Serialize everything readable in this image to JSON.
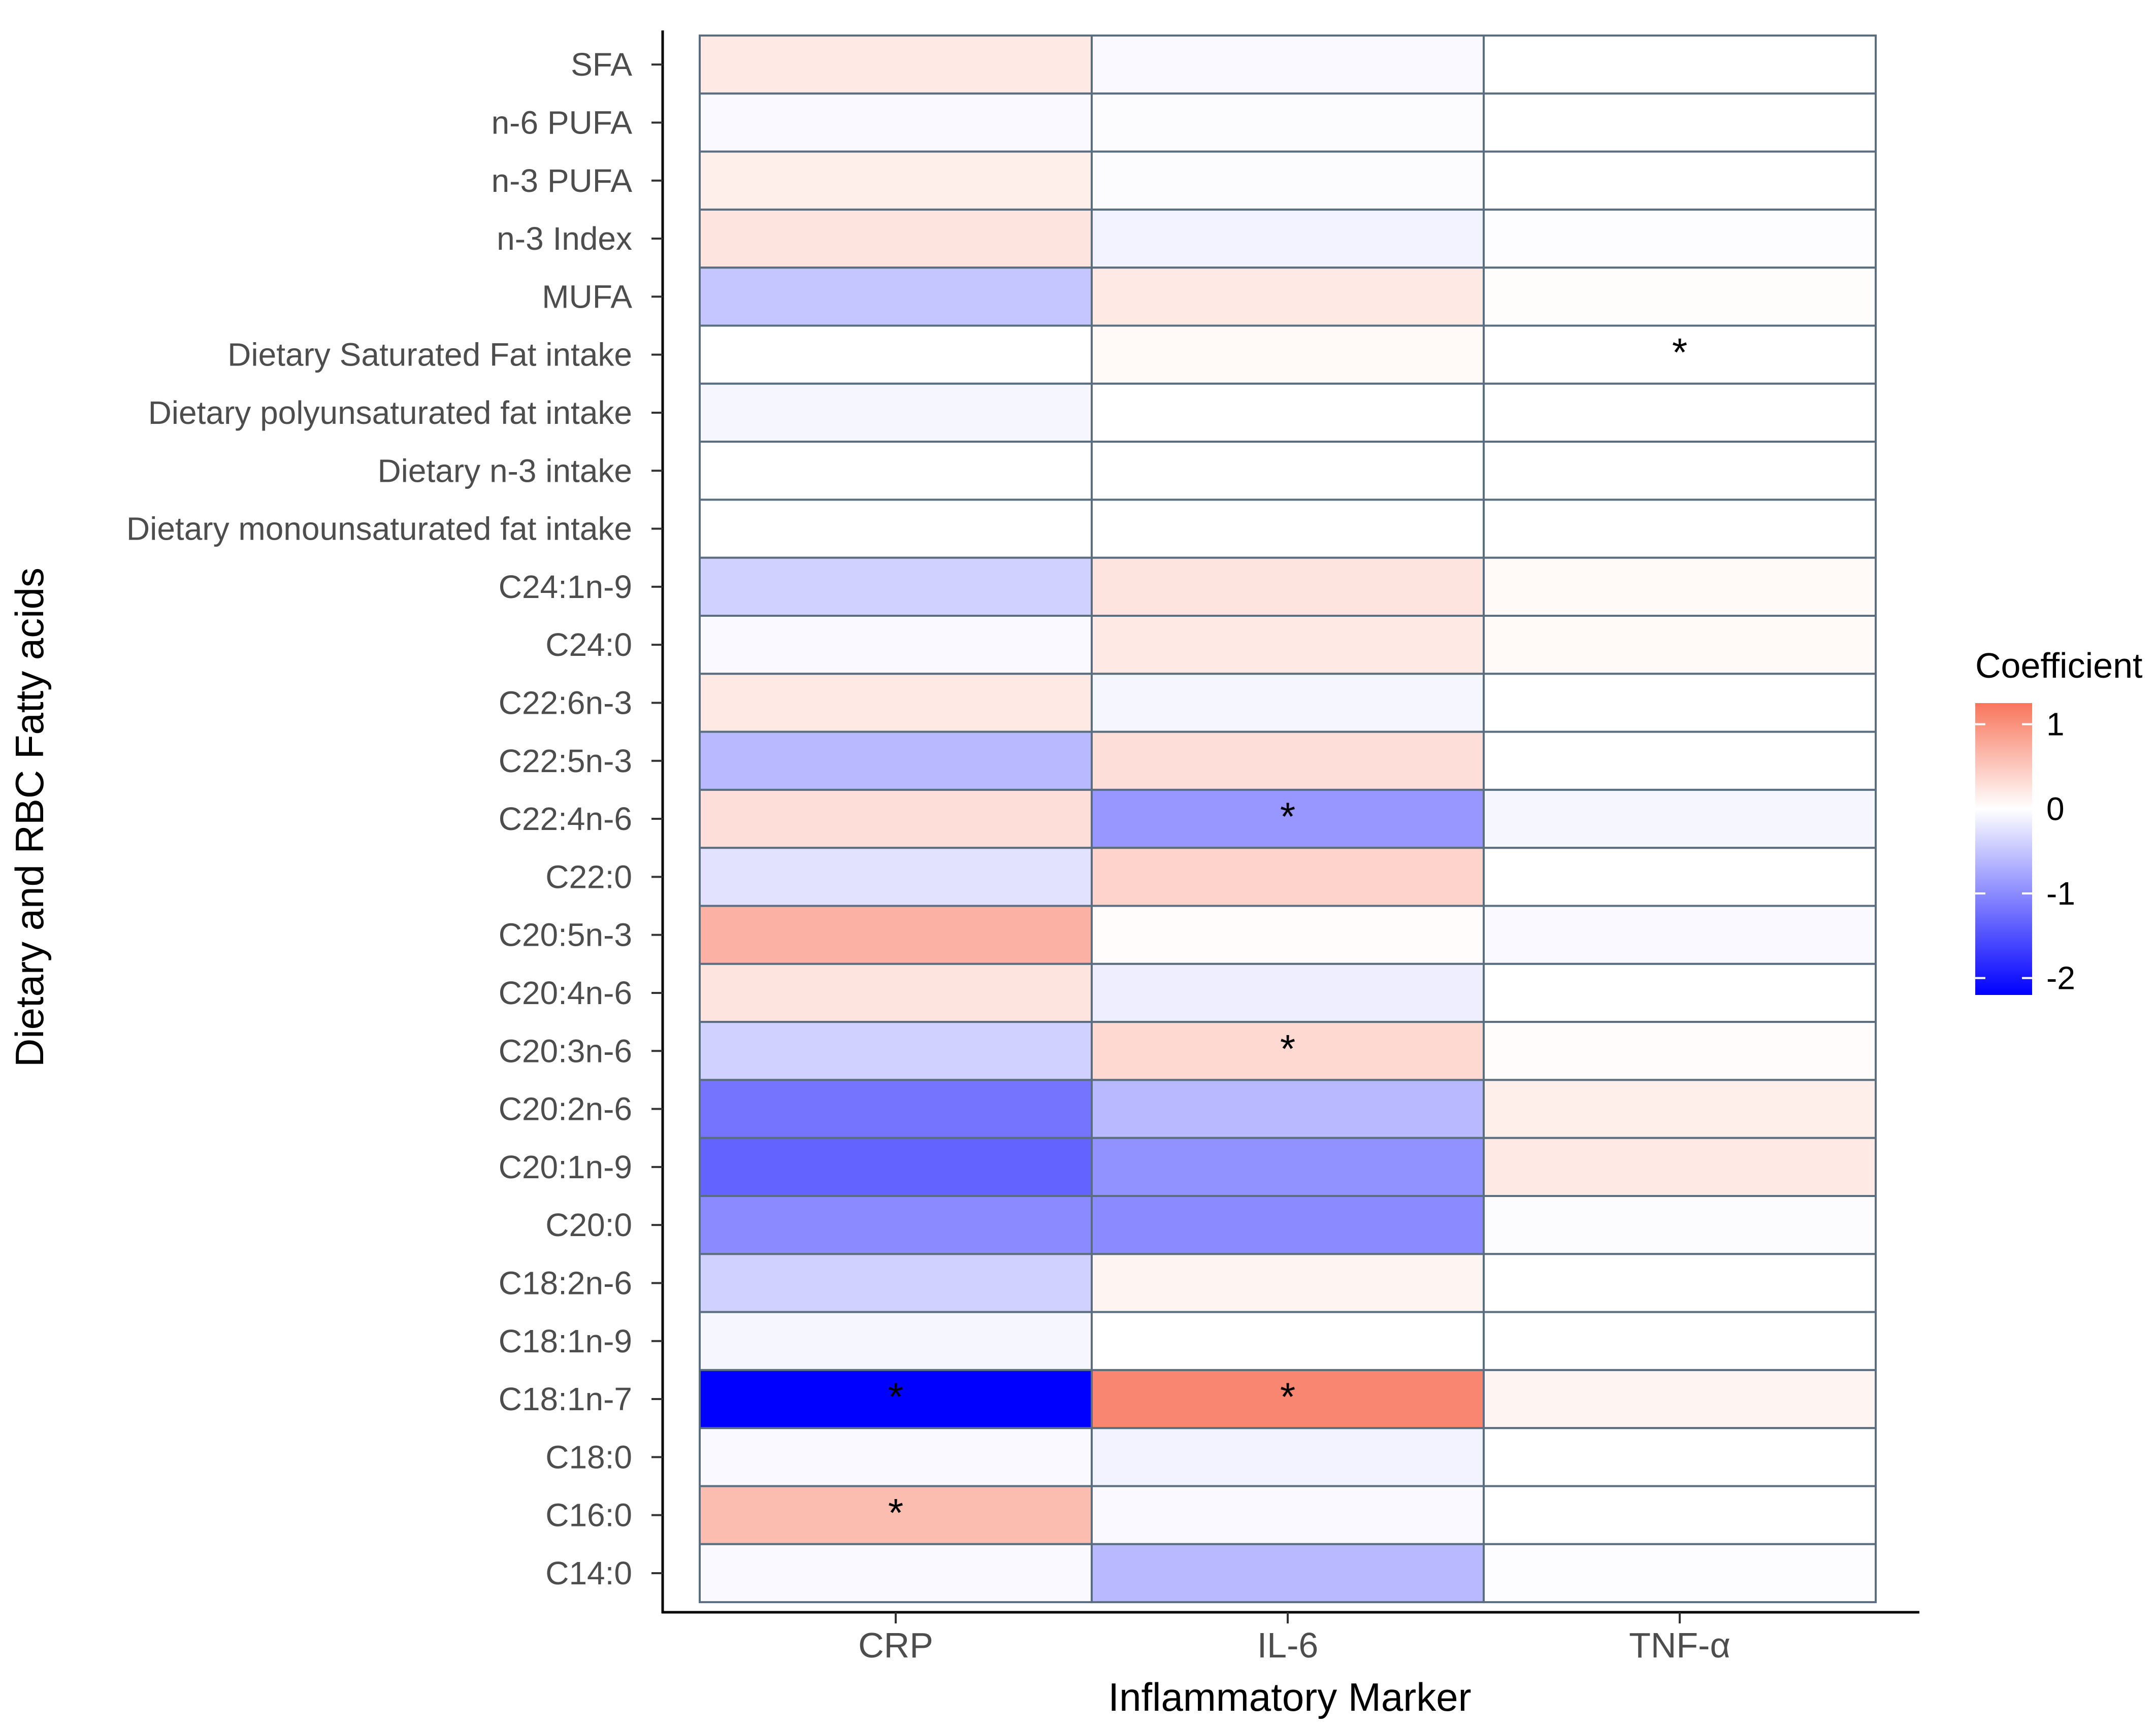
{
  "chart_data": {
    "type": "heatmap",
    "xlabel": "Inflammatory Marker",
    "ylabel": "Dietary and RBC Fatty acids",
    "columns": [
      "CRP",
      "IL-6",
      "TNF-α"
    ],
    "rows": [
      "SFA",
      "n-6 PUFA",
      "n-3 PUFA",
      "n-3 Index",
      "MUFA",
      "Dietary Saturated Fat intake",
      "Dietary polyunsaturated fat intake",
      "Dietary n-3 intake",
      "Dietary monounsaturated fat intake",
      "C24:1n-9",
      "C24:0",
      "C22:6n-3",
      "C22:5n-3",
      "C22:4n-6",
      "C22:0",
      "C20:5n-3",
      "C20:4n-6",
      "C20:3n-6",
      "C20:2n-6",
      "C20:1n-9",
      "C20:0",
      "C18:2n-6",
      "C18:1n-9",
      "C18:1n-7",
      "C18:0",
      "C16:0",
      "C14:0"
    ],
    "values": [
      [
        0.2,
        -0.05,
        0.0
      ],
      [
        -0.05,
        -0.03,
        0.0
      ],
      [
        0.15,
        -0.03,
        0.0
      ],
      [
        0.25,
        -0.1,
        -0.02
      ],
      [
        -0.5,
        0.2,
        0.02
      ],
      [
        0.0,
        0.05,
        0.0
      ],
      [
        -0.08,
        0.0,
        0.0
      ],
      [
        0.0,
        0.0,
        0.0
      ],
      [
        0.0,
        0.0,
        0.0
      ],
      [
        -0.4,
        0.25,
        0.05
      ],
      [
        -0.05,
        0.2,
        0.05
      ],
      [
        0.2,
        -0.08,
        0.0
      ],
      [
        -0.6,
        0.3,
        0.0
      ],
      [
        0.3,
        -0.9,
        -0.08
      ],
      [
        -0.25,
        0.4,
        0.0
      ],
      [
        0.7,
        0.03,
        -0.05
      ],
      [
        0.25,
        -0.15,
        0.0
      ],
      [
        -0.4,
        0.35,
        0.03
      ],
      [
        -1.2,
        -0.6,
        0.15
      ],
      [
        -1.35,
        -0.95,
        0.2
      ],
      [
        -1.0,
        -1.0,
        -0.03
      ],
      [
        -0.4,
        0.1,
        0.0
      ],
      [
        -0.08,
        0.0,
        0.0
      ],
      [
        -2.2,
        1.1,
        0.1
      ],
      [
        -0.05,
        -0.1,
        0.0
      ],
      [
        0.6,
        -0.05,
        0.0
      ],
      [
        -0.05,
        -0.6,
        -0.02
      ]
    ],
    "significant": [
      [
        5,
        2
      ],
      [
        13,
        1
      ],
      [
        17,
        1
      ],
      [
        23,
        0
      ],
      [
        23,
        1
      ],
      [
        25,
        0
      ]
    ],
    "significance_marker": "*",
    "legend": {
      "title": "Coefficient",
      "range": [
        -2.2,
        1.25
      ],
      "ticks": [
        1,
        0,
        -1,
        -2
      ],
      "tick_labels": [
        "1",
        "0",
        "-1",
        "-2"
      ],
      "high_color": "#f8765c",
      "mid_color": "#ffffff",
      "low_color": "#0000ff"
    }
  }
}
